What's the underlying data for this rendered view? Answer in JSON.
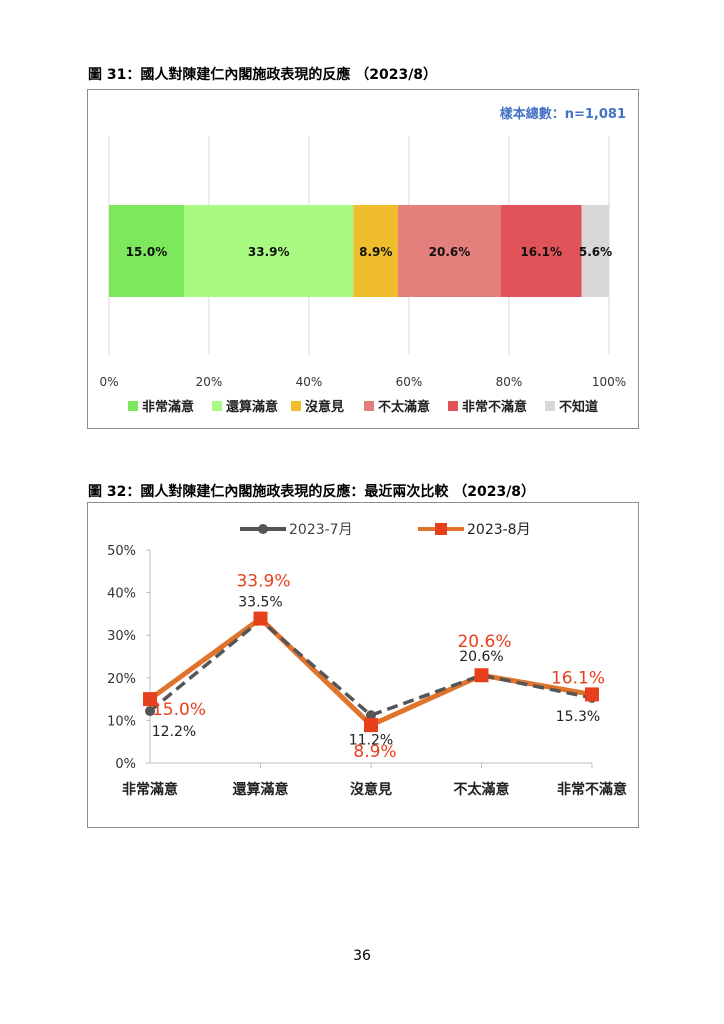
{
  "figure31": {
    "caption": "圖 31：國人對陳建仁內閣施政表現的反應 （2023/8）",
    "sample_note": "樣本總數：n=1,081",
    "colors": [
      "#7ee85c",
      "#a8fa80",
      "#f0bd2e",
      "#e47f7c",
      "#e05459",
      "#d8d8d8"
    ]
  },
  "figure32": {
    "caption": "圖 32：國人對陳建仁內閣施政表現的反應：最近兩次比較 （2023/8）",
    "colors": {
      "jul": "#555555",
      "aug": "#e0742c",
      "aug_marker": "#e8401c",
      "aug_label": "#e8401c"
    }
  },
  "chart_data": [
    {
      "type": "bar",
      "orientation": "horizontal-stacked",
      "categories": [
        "非常滿意",
        "還算滿意",
        "沒意見",
        "不太滿意",
        "非常不滿意",
        "不知道"
      ],
      "values": [
        15.0,
        33.9,
        8.9,
        20.6,
        16.1,
        5.6
      ],
      "value_labels": [
        "15.0%",
        "33.9%",
        "8.9%",
        "20.6%",
        "16.1%",
        "5.6%"
      ],
      "xlim": [
        0,
        100
      ],
      "xticks": [
        "0%",
        "20%",
        "40%",
        "60%",
        "80%",
        "100%"
      ],
      "grid": true,
      "legend": "bottom"
    },
    {
      "type": "line",
      "categories": [
        "非常滿意",
        "還算滿意",
        "沒意見",
        "不太滿意",
        "非常不滿意"
      ],
      "series": [
        {
          "name": "2023-7月",
          "values": [
            12.2,
            33.5,
            11.2,
            20.6,
            15.3
          ],
          "labels": [
            "12.2%",
            "33.5%",
            "11.2%",
            "20.6%",
            "15.3%"
          ]
        },
        {
          "name": "2023-8月",
          "values": [
            15.0,
            33.9,
            8.9,
            20.6,
            16.1
          ],
          "labels": [
            "15.0%",
            "33.9%",
            "8.9%",
            "20.6%",
            "16.1%"
          ]
        }
      ],
      "ylim": [
        0,
        50
      ],
      "yticks": [
        "0%",
        "10%",
        "20%",
        "30%",
        "40%",
        "50%"
      ],
      "grid": false,
      "legend": "top"
    }
  ],
  "page_number": "36"
}
